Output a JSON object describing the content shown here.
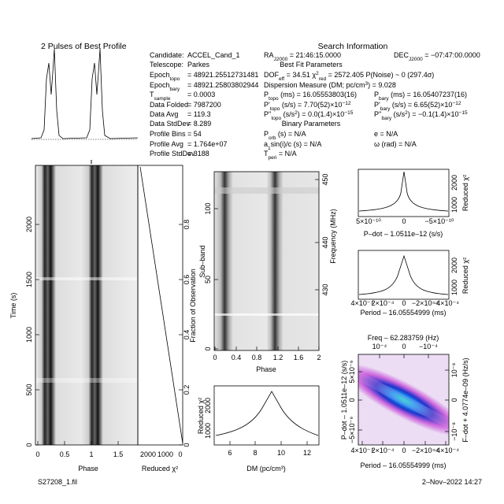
{
  "title": "2 Pulses of Best Profile",
  "search_header": "Search Information",
  "info_left": [
    {
      "parts": [
        {
          "t": "Candidate:"
        }
      ],
      "value": "ACCEL_Cand_1"
    },
    {
      "parts": [
        {
          "t": "Telescope:"
        }
      ],
      "value": "Parkes"
    },
    {
      "parts": [
        {
          "t": "Epoch"
        },
        {
          "sub": "topo"
        }
      ],
      "value": "= 48921.25512731481"
    },
    {
      "parts": [
        {
          "t": "Epoch"
        },
        {
          "sub": "bary"
        }
      ],
      "value": "= 48921.25803802944"
    },
    {
      "parts": [
        {
          "t": "T"
        },
        {
          "sub": "sample"
        }
      ],
      "value": "= 0.0003"
    },
    {
      "parts": [
        {
          "t": "Data Folded"
        }
      ],
      "value": "= 7987200"
    },
    {
      "parts": [
        {
          "t": "Data Avg"
        }
      ],
      "value": "= 119.3"
    },
    {
      "parts": [
        {
          "t": "Data StdDev"
        }
      ],
      "value": "= 8.289"
    },
    {
      "parts": [
        {
          "t": "Profile Bins"
        }
      ],
      "value": "= 54"
    },
    {
      "parts": [
        {
          "t": "Profile Avg"
        }
      ],
      "value": "= 1.764e+07"
    },
    {
      "parts": [
        {
          "t": "Profile StdDev"
        }
      ],
      "value": "= 3188"
    }
  ],
  "info_right": [
    {
      "parts": [
        {
          "t": "RA"
        },
        {
          "sub": "J2000"
        },
        {
          "t": " = 21:46:15.0000"
        }
      ]
    },
    {
      "parts": [
        {
          "t": "DEC"
        },
        {
          "sub": "J2000"
        },
        {
          "t": " = −07:47:00.0000"
        }
      ]
    },
    {
      "parts": [
        {
          "t": "Best Fit Parameters"
        }
      ]
    },
    {
      "parts": [
        {
          "t": "DOF"
        },
        {
          "sub": "eff"
        },
        {
          "t": " = 34.51  χ"
        },
        {
          "sup": "2"
        },
        {
          "sub": "red"
        },
        {
          "t": " = 2572.405  P(Noise) ~ 0   (297.4σ)"
        }
      ]
    },
    {
      "parts": [
        {
          "t": "Dispersion Measure (DM; pc/cm"
        },
        {
          "sup": "3"
        },
        {
          "t": ") = 9.028"
        }
      ]
    },
    {
      "parts": [
        {
          "t": "P"
        },
        {
          "sub": "topo"
        },
        {
          "t": " (ms) = 16.05553803(16)"
        }
      ]
    },
    {
      "parts": [
        {
          "t": "P"
        },
        {
          "sub": "bary"
        },
        {
          "t": " (ms) = 16.05407237(16)"
        }
      ]
    },
    {
      "parts": [
        {
          "t": "P'"
        },
        {
          "sub": "topo"
        },
        {
          "t": " (s/s) = 7.70(52)×10"
        },
        {
          "sup": "−12"
        }
      ]
    },
    {
      "parts": [
        {
          "t": "P'"
        },
        {
          "sub": "bary"
        },
        {
          "t": " (s/s) = 6.65(52)×10"
        },
        {
          "sup": "−12"
        }
      ]
    },
    {
      "parts": [
        {
          "t": "P''"
        },
        {
          "sub": "topo"
        },
        {
          "t": " (s/s"
        },
        {
          "sup": "2"
        },
        {
          "t": ") = 0.0(1.4)×10"
        },
        {
          "sup": "−15"
        }
      ]
    },
    {
      "parts": [
        {
          "t": "P''"
        },
        {
          "sub": "bary"
        },
        {
          "t": " (s/s"
        },
        {
          "sup": "2"
        },
        {
          "t": ") = −0.1(1.4)×10"
        },
        {
          "sup": "−15"
        }
      ]
    },
    {
      "parts": [
        {
          "t": "Binary Parameters"
        }
      ]
    },
    {
      "parts": [
        {
          "t": "P"
        },
        {
          "sub": "orb"
        },
        {
          "t": " (s) = N/A"
        }
      ]
    },
    {
      "parts": [
        {
          "t": "e = N/A"
        }
      ]
    },
    {
      "parts": [
        {
          "t": "a"
        },
        {
          "sub": "1"
        },
        {
          "t": "sin(i)/c (s) = N/A"
        }
      ]
    },
    {
      "parts": [
        {
          "t": "ω (rad) = N/A"
        }
      ]
    },
    {
      "parts": [
        {
          "t": "T"
        },
        {
          "sub": "peri"
        },
        {
          "t": " = N/A"
        }
      ]
    }
  ],
  "time_panel": {
    "ylabel": "Time (s)",
    "xlabel": "Phase",
    "yticks": [
      "0",
      "500",
      "1000",
      "1500",
      "2000"
    ],
    "xticks": [
      "0",
      "0.5",
      "1",
      "1.5"
    ]
  },
  "chi_panel": {
    "xlabel": "Reduced χ²",
    "ylabel": "Fraction of Observation",
    "xticks": [
      "2000",
      "1000",
      "0"
    ],
    "yticks": [
      "0",
      "0.2",
      "0.4",
      "0.6",
      "0.8"
    ]
  },
  "subband_panel": {
    "ylabel": "Sub–band",
    "xlabel": "Phase",
    "y2label": "Frequency (MHz)",
    "yticks": [
      "0",
      "50",
      "100"
    ],
    "xticks": [
      "0",
      "0.4",
      "0.8",
      "1.2",
      "1.6",
      "2"
    ],
    "y2ticks": [
      "430",
      "440",
      "450"
    ]
  },
  "dm_panel": {
    "xlabel": "DM (pc/cm³)",
    "ylabel": "Reduced χ²",
    "yticks": [
      "1000",
      "2000"
    ],
    "xticks": [
      "6",
      "8",
      "10",
      "12"
    ]
  },
  "pdot_panel": {
    "xlabel": "P–dot – 1.0511e–12 (s/s)",
    "ylabel": "Reduced χ²",
    "yticks": [
      "1000",
      "2000"
    ],
    "xticks": [
      "5×10⁻¹⁰",
      "0",
      "−5×10⁻¹⁰"
    ]
  },
  "period_panel": {
    "xlabel": "Period – 16.05554999 (ms)",
    "ylabel": "Reduced χ²",
    "yticks": [
      "1000",
      "2000"
    ],
    "xticks": [
      "4×10⁻⁴",
      "2×10⁻⁴",
      "0",
      "−2×10⁻⁴",
      "−4×10⁻⁴"
    ]
  },
  "ppdot_panel": {
    "xlabel": "Period – 16.05554999 (ms)",
    "ylabel": "P–dot – 1.0511e–12 (s/s)",
    "x2label": "Freq – 62.283759 (Hz)",
    "y2label": "F–dot + 4.0774e–09 (Hz/s)",
    "xticks": [
      "4×10⁻⁴",
      "2×10⁻⁴",
      "0",
      "−2×10⁻⁴",
      "−4×10⁻⁴"
    ],
    "yticks": [
      "5×10⁻⁹",
      "0",
      "−5×10⁻⁹"
    ],
    "x2ticks": [
      "10⁻⁴",
      "0",
      "−10⁻⁴"
    ],
    "y2ticks": [
      "10⁻⁸",
      "0",
      "−10⁻⁸"
    ]
  },
  "footer_left": "S27208_1.fil",
  "footer_right": "2–Nov–2022 14:27"
}
